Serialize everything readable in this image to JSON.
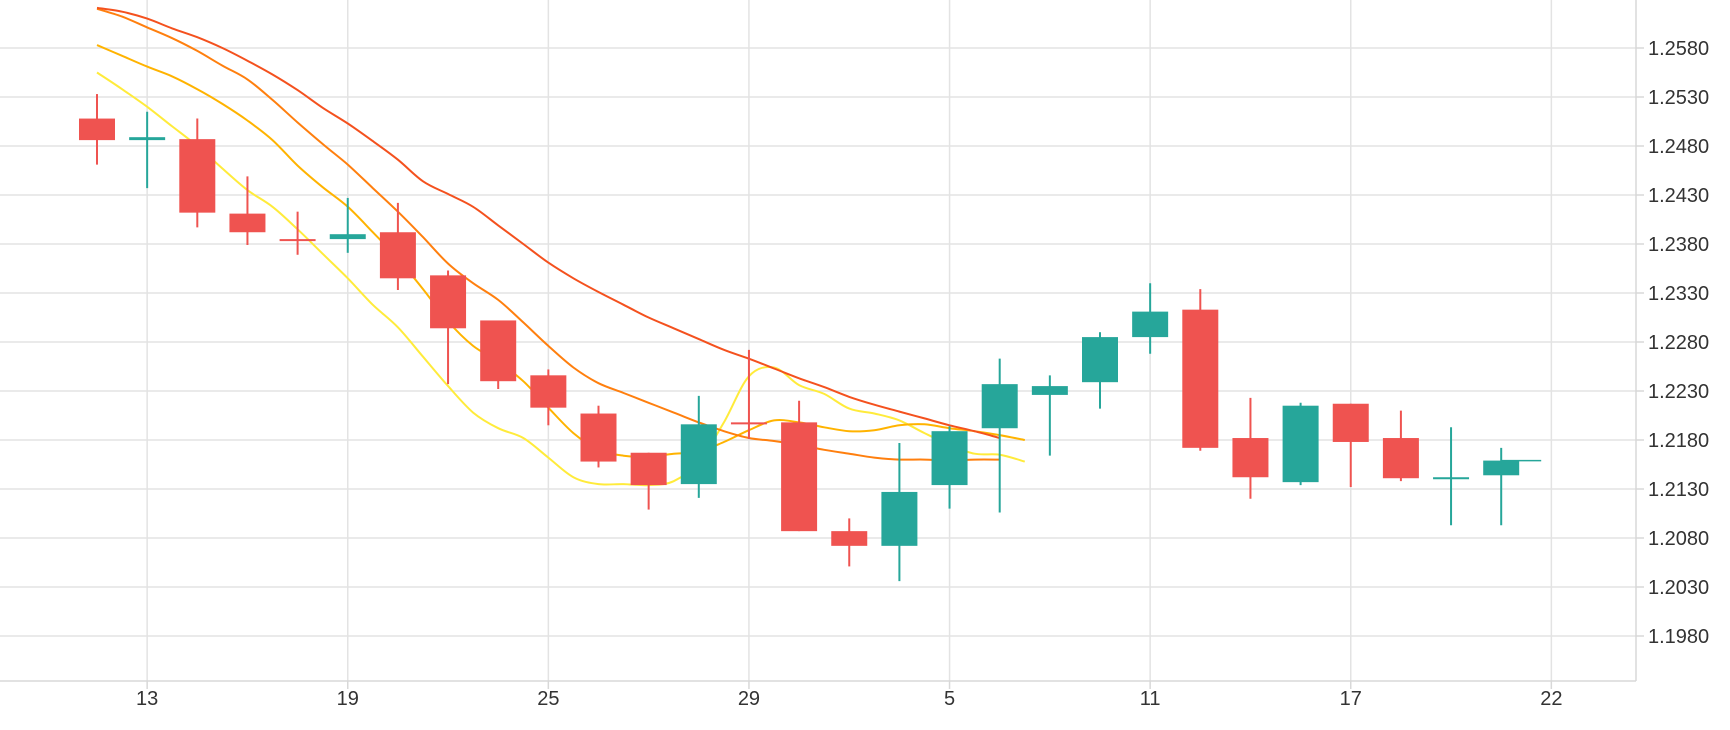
{
  "chart_data": {
    "type": "candlestick",
    "title": "",
    "xlabel": "",
    "ylabel": "",
    "grid": true,
    "y_axis_side": "right",
    "ylim": [
      1.193,
      1.2625
    ],
    "y_ticks": [
      "1.2580",
      "1.2530",
      "1.2480",
      "1.2430",
      "1.2380",
      "1.2330",
      "1.2280",
      "1.2230",
      "1.2180",
      "1.2130",
      "1.2080",
      "1.2030",
      "1.1980"
    ],
    "x_ticks": [
      {
        "label": "13",
        "index": 1
      },
      {
        "label": "19",
        "index": 5
      },
      {
        "label": "25",
        "index": 9
      },
      {
        "label": "29",
        "index": 13
      },
      {
        "label": "5",
        "index": 17
      },
      {
        "label": "11",
        "index": 21
      },
      {
        "label": "17",
        "index": 25
      },
      {
        "label": "22",
        "index": 29
      }
    ],
    "colors": {
      "up": "#26a69a",
      "down": "#ef5350",
      "last_price_line": "#26a69a",
      "grid": "#e3e3e3"
    },
    "candles": [
      {
        "open": 1.2508,
        "high": 1.2533,
        "low": 1.2461,
        "close": 1.2486
      },
      {
        "open": 1.2486,
        "high": 1.2515,
        "low": 1.2437,
        "close": 1.2489
      },
      {
        "open": 1.2487,
        "high": 1.2508,
        "low": 1.2397,
        "close": 1.2412
      },
      {
        "open": 1.2411,
        "high": 1.2449,
        "low": 1.2379,
        "close": 1.2392
      },
      {
        "open": 1.2385,
        "high": 1.2413,
        "low": 1.2369,
        "close": 1.2384
      },
      {
        "open": 1.2385,
        "high": 1.2427,
        "low": 1.2371,
        "close": 1.239
      },
      {
        "open": 1.2392,
        "high": 1.2422,
        "low": 1.2333,
        "close": 1.2345
      },
      {
        "open": 1.2348,
        "high": 1.2353,
        "low": 1.2237,
        "close": 1.2294
      },
      {
        "open": 1.2302,
        "high": 1.2302,
        "low": 1.2232,
        "close": 1.224
      },
      {
        "open": 1.2246,
        "high": 1.2252,
        "low": 1.2195,
        "close": 1.2213
      },
      {
        "open": 1.2207,
        "high": 1.2215,
        "low": 1.2152,
        "close": 1.2158
      },
      {
        "open": 1.2167,
        "high": 1.2167,
        "low": 1.2109,
        "close": 1.2134
      },
      {
        "open": 1.2135,
        "high": 1.2225,
        "low": 1.2121,
        "close": 1.2196
      },
      {
        "open": 1.2198,
        "high": 1.2272,
        "low": 1.2181,
        "close": 1.2196
      },
      {
        "open": 1.2198,
        "high": 1.222,
        "low": 1.2087,
        "close": 1.2087
      },
      {
        "open": 1.2087,
        "high": 1.21,
        "low": 1.2051,
        "close": 1.2072
      },
      {
        "open": 1.2072,
        "high": 1.2177,
        "low": 1.2036,
        "close": 1.2127
      },
      {
        "open": 1.2134,
        "high": 1.2194,
        "low": 1.211,
        "close": 1.2189
      },
      {
        "open": 1.2192,
        "high": 1.2263,
        "low": 1.2106,
        "close": 1.2237
      },
      {
        "open": 1.2226,
        "high": 1.2246,
        "low": 1.2164,
        "close": 1.2235
      },
      {
        "open": 1.2239,
        "high": 1.229,
        "low": 1.2212,
        "close": 1.2285
      },
      {
        "open": 1.2285,
        "high": 1.234,
        "low": 1.2268,
        "close": 1.2311
      },
      {
        "open": 1.2313,
        "high": 1.2334,
        "low": 1.2169,
        "close": 1.2172
      },
      {
        "open": 1.2182,
        "high": 1.2223,
        "low": 1.212,
        "close": 1.2142
      },
      {
        "open": 1.2137,
        "high": 1.2218,
        "low": 1.2134,
        "close": 1.2215
      },
      {
        "open": 1.2217,
        "high": 1.2217,
        "low": 1.2132,
        "close": 1.2178
      },
      {
        "open": 1.2182,
        "high": 1.221,
        "low": 1.2138,
        "close": 1.2141
      },
      {
        "open": 1.214,
        "high": 1.2193,
        "low": 1.2093,
        "close": 1.2142
      },
      {
        "open": 1.2144,
        "high": 1.2172,
        "low": 1.2093,
        "close": 1.2159
      }
    ],
    "last_price": 1.2159,
    "moving_averages": [
      {
        "color": "#ffeb3b",
        "values": [
          1.2555,
          1.2538,
          1.252,
          1.25,
          1.248,
          1.2457,
          1.2435,
          1.2418,
          1.2395,
          1.237,
          1.2345,
          1.2318,
          1.2295,
          1.2265,
          1.2235,
          1.2208,
          1.2192,
          1.2182,
          1.2162,
          1.2142,
          1.2135,
          1.2135,
          1.2134,
          1.2138,
          1.2158,
          1.2198,
          1.2245,
          1.2254,
          1.2236,
          1.2227,
          1.2212,
          1.2207,
          1.22,
          1.2187,
          1.2175,
          1.2166,
          1.2165,
          1.2158
        ]
      },
      {
        "color": "#ffb300",
        "values": [
          1.2583,
          1.2572,
          1.2561,
          1.2551,
          1.2538,
          1.2523,
          1.2506,
          1.2486,
          1.246,
          1.2438,
          1.2418,
          1.2392,
          1.2365,
          1.2334,
          1.2301,
          1.2276,
          1.226,
          1.224,
          1.2213,
          1.2187,
          1.217,
          1.2164,
          1.2163,
          1.2166,
          1.2168,
          1.2178,
          1.219,
          1.22,
          1.2198,
          1.2193,
          1.2189,
          1.219,
          1.2195,
          1.2196,
          1.2192,
          1.2189,
          1.2185,
          1.218
        ]
      },
      {
        "color": "#ff7f0e",
        "values": [
          1.262,
          1.2612,
          1.2601,
          1.259,
          1.2577,
          1.2562,
          1.2548,
          1.2527,
          1.2504,
          1.2482,
          1.2461,
          1.2437,
          1.2413,
          1.2387,
          1.236,
          1.234,
          1.2323,
          1.23,
          1.2276,
          1.2254,
          1.2238,
          1.2228,
          1.2218,
          1.2208,
          1.2198,
          1.2189,
          1.2182,
          1.2179,
          1.2175,
          1.217,
          1.2166,
          1.2162,
          1.216,
          1.216,
          1.2159,
          1.216,
          1.216
        ]
      },
      {
        "color": "#f4511e",
        "values": [
          1.2621,
          1.2617,
          1.261,
          1.26,
          1.2591,
          1.258,
          1.2567,
          1.2553,
          1.2537,
          1.2519,
          1.2503,
          1.2485,
          1.2466,
          1.2444,
          1.2431,
          1.2418,
          1.2399,
          1.238,
          1.2361,
          1.2345,
          1.2331,
          1.2318,
          1.2305,
          1.2294,
          1.2283,
          1.2272,
          1.2263,
          1.2253,
          1.2243,
          1.2234,
          1.2224,
          1.2216,
          1.2209,
          1.2202,
          1.2195,
          1.2189,
          1.2182
        ]
      }
    ]
  }
}
